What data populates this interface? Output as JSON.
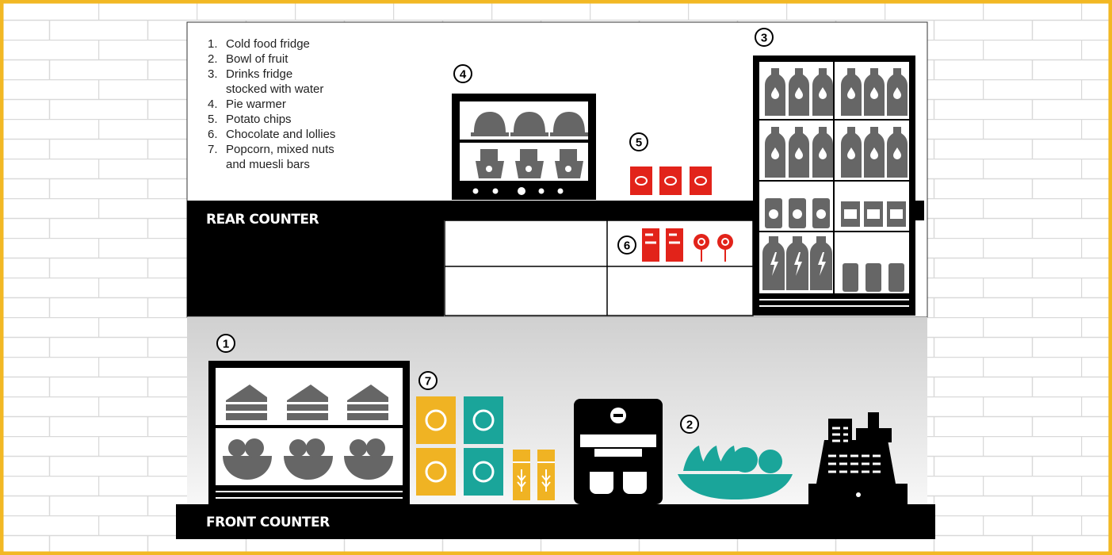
{
  "legend": [
    {
      "number": "1.",
      "lines": [
        "Cold food fridge"
      ]
    },
    {
      "number": "2.",
      "lines": [
        "Bowl of fruit"
      ]
    },
    {
      "number": "3.",
      "lines": [
        "Drinks fridge",
        "stocked with water"
      ]
    },
    {
      "number": "4.",
      "lines": [
        "Pie warmer"
      ]
    },
    {
      "number": "5.",
      "lines": [
        "Potato chips"
      ]
    },
    {
      "number": "6.",
      "lines": [
        "Chocolate and lollies"
      ]
    },
    {
      "number": "7.",
      "lines": [
        "Popcorn, mixed nuts",
        "and muesli bars"
      ]
    }
  ],
  "labels": {
    "rear_counter": "REAR COUNTER",
    "front_counter": "FRONT COUNTER"
  },
  "markers": [
    "1",
    "2",
    "3",
    "4",
    "5",
    "6",
    "7"
  ]
}
